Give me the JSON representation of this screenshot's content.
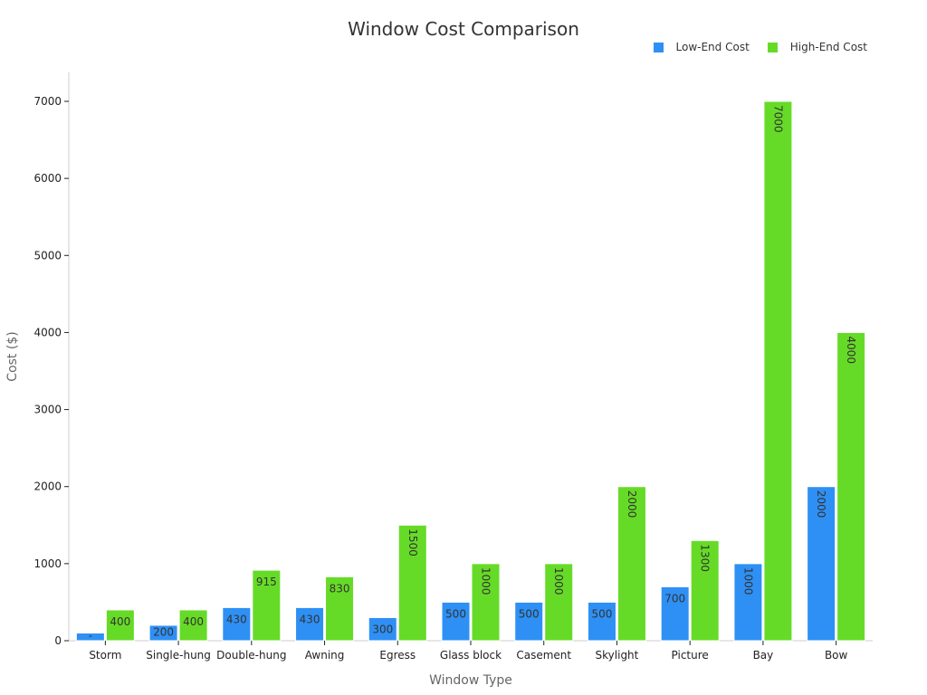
{
  "chart_data": {
    "type": "bar",
    "title": "Window Cost Comparison",
    "xlabel": "Window Type",
    "ylabel": "Cost ($)",
    "ylim": [
      0,
      7000
    ],
    "yticks": [
      0,
      1000,
      2000,
      3000,
      4000,
      5000,
      6000,
      7000
    ],
    "legend_position": "top-right",
    "categories": [
      "Storm",
      "Single-hung",
      "Double-hung",
      "Awning",
      "Egress",
      "Glass block",
      "Casement",
      "Skylight",
      "Picture",
      "Bay",
      "Bow"
    ],
    "series": [
      {
        "name": "Low-End Cost",
        "color": "#2E90F4",
        "values": [
          100,
          200,
          430,
          430,
          300,
          500,
          500,
          500,
          700,
          1000,
          2000
        ],
        "labels": [
          "-",
          "200",
          "430",
          "430",
          "300",
          "500",
          "500",
          "500",
          "700",
          "1000",
          "2000"
        ]
      },
      {
        "name": "High-End Cost",
        "color": "#66DB27",
        "values": [
          400,
          400,
          915,
          830,
          1500,
          1000,
          1000,
          2000,
          1300,
          7000,
          4000
        ],
        "labels": [
          "400",
          "400",
          "915",
          "830",
          "1500",
          "1000",
          "1000",
          "2000",
          "1300",
          "7000",
          "4000"
        ]
      }
    ]
  }
}
